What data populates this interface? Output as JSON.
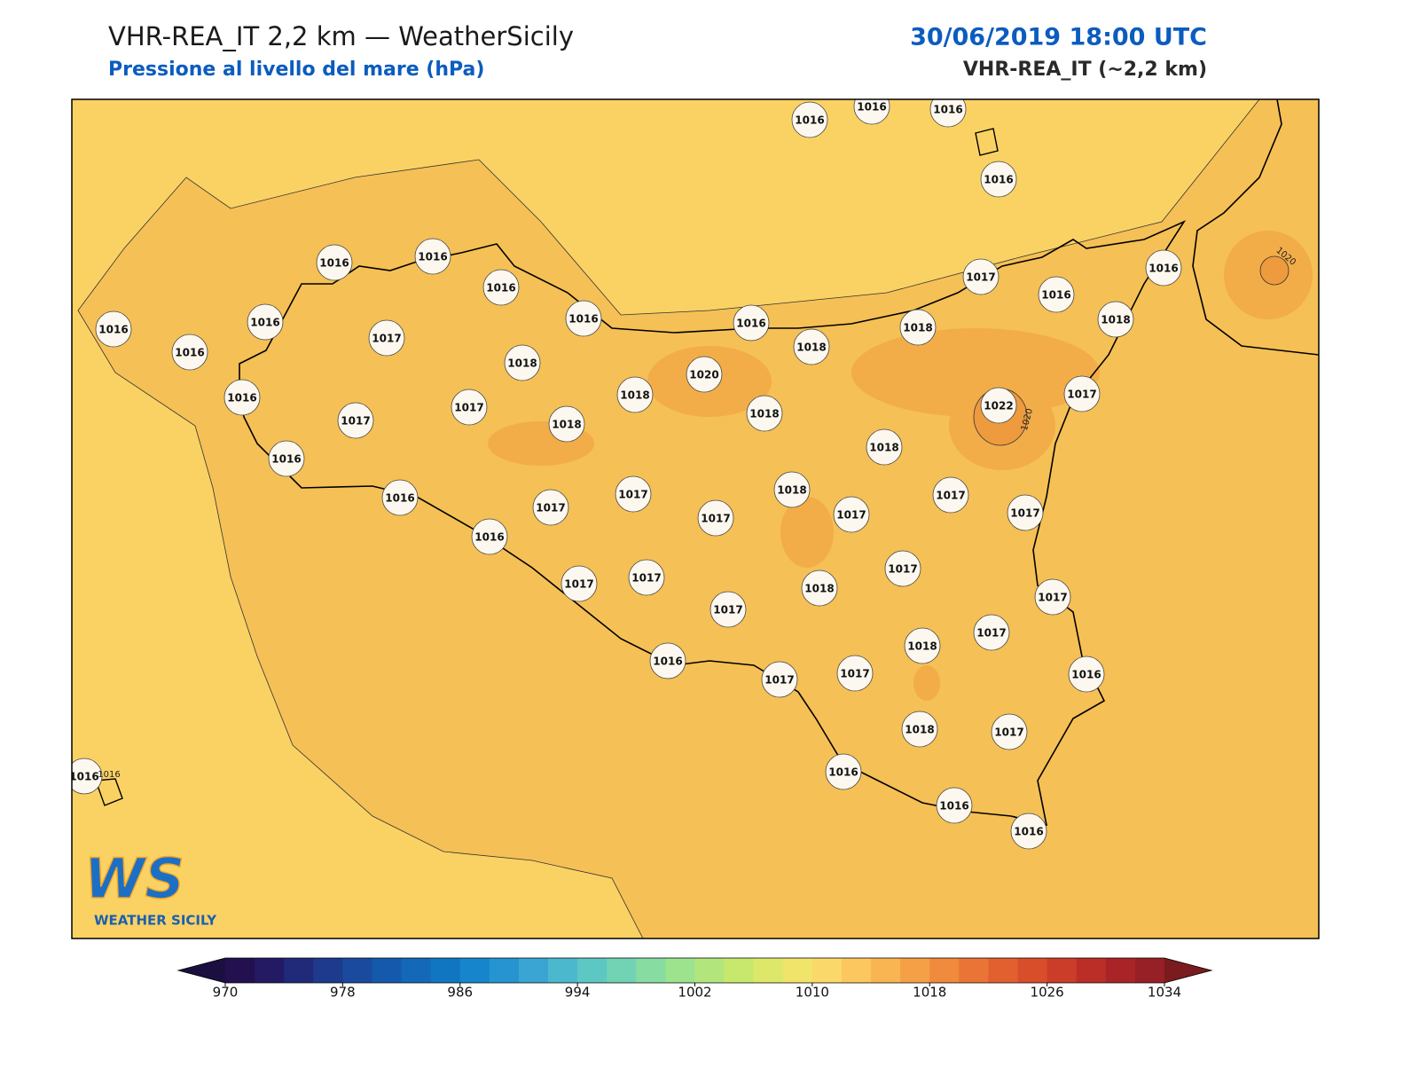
{
  "header": {
    "title": "VHR-REA_IT 2,2 km — WeatherSicily",
    "subtitle": "Pressione al livello del mare (hPa)",
    "datetime": "30/06/2019 18:00 UTC",
    "model": "VHR-REA_IT (~2,2 km)"
  },
  "map": {
    "station_labels": [
      1016,
      1016,
      1016,
      1016,
      1016,
      1016,
      1016,
      1016,
      1017,
      1016,
      1016,
      1018,
      1016,
      1016,
      1016,
      1017,
      1018,
      1016,
      1018,
      1018,
      1020,
      1017,
      1016,
      1017,
      1017,
      1018,
      1018,
      1018,
      1022,
      1018,
      1016,
      1016,
      1017,
      1017,
      1017,
      1018,
      1017,
      1017,
      1017,
      1016,
      1017,
      1017,
      1018,
      1017,
      1017,
      1017,
      1018,
      1017,
      1016,
      1017,
      1017,
      1016,
      1018,
      1017,
      1016,
      1016,
      1016,
      1016
    ],
    "contour_labels": [
      1020,
      1020,
      1016
    ]
  },
  "logo": {
    "mark": "WS",
    "text": "WEATHER SICILY"
  },
  "colorbar": {
    "lim": [
      970,
      1034
    ],
    "ticks": [
      970,
      978,
      986,
      994,
      1002,
      1010,
      1018,
      1026,
      1034
    ],
    "colors": [
      "#22104f",
      "#231a63",
      "#202a78",
      "#1e3a8c",
      "#1a4a9e",
      "#1559ad",
      "#1368b8",
      "#1176c2",
      "#1685cb",
      "#2694d0",
      "#3aa5d2",
      "#4cb8cd",
      "#5dc7c3",
      "#72d3b4",
      "#87dca1",
      "#9de38e",
      "#b2e67d",
      "#c8e86d",
      "#dde86b",
      "#f0e46a",
      "#fbd86a",
      "#fcc75e",
      "#f9b552",
      "#f5a046",
      "#f08a3c",
      "#ea7435",
      "#e2602f",
      "#d84e2b",
      "#cb3d29",
      "#bb2e28",
      "#a92427",
      "#962025"
    ],
    "under_color": "#1a0f3f",
    "over_color": "#7a1b1f"
  }
}
